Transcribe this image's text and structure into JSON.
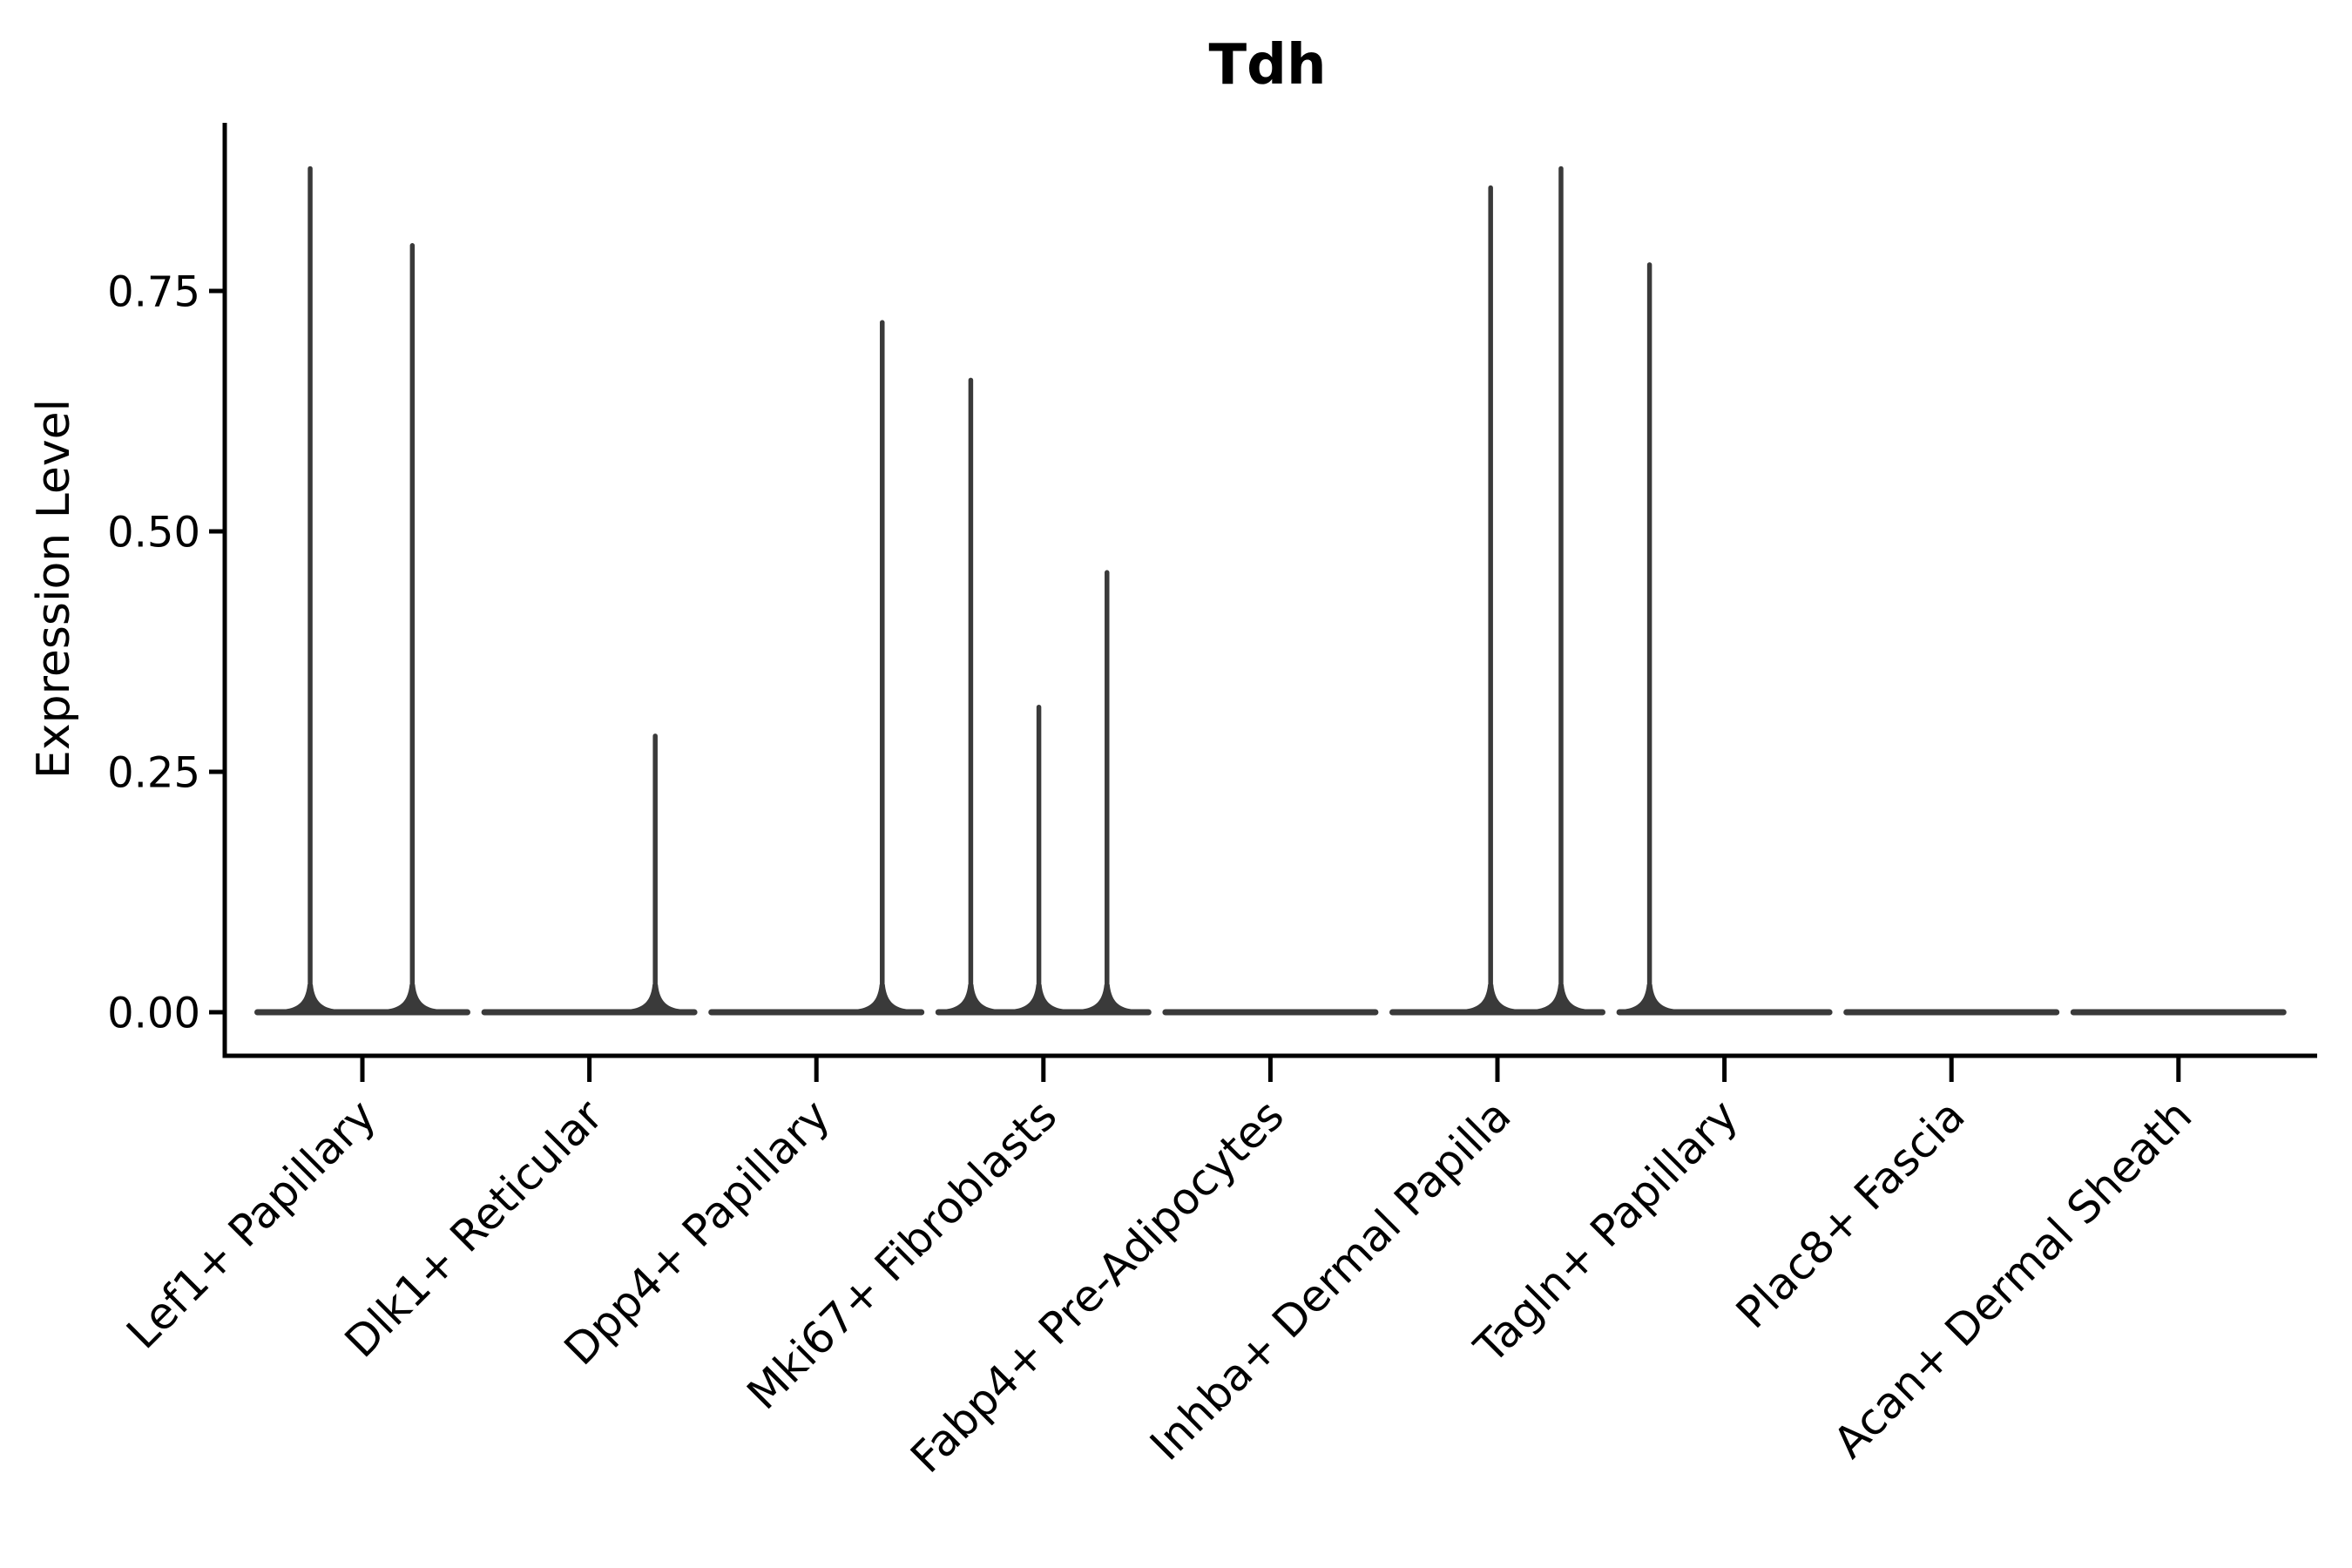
{
  "figure": {
    "background": "#ffffff"
  },
  "chart_data": {
    "type": "violin",
    "title": "Tdh",
    "ylabel": "Expression Level",
    "xlabel": "",
    "ylim": [
      0,
      0.93
    ],
    "yticks": [
      0.0,
      0.25,
      0.5,
      0.75
    ],
    "ytick_labels": [
      "0.00",
      "0.25",
      "0.50",
      "0.75"
    ],
    "grid": false,
    "legend": null,
    "axis_color": "#000000",
    "violin_color": "#3a3a3a",
    "x_label_rotation_deg": 45,
    "categories": [
      "Lef1+ Papillary",
      "Dlk1+ Reticular",
      "Dpp4+ Papillary",
      "Mki67+ Fibroblasts",
      "Fabp4+ Pre-Adipocytes",
      "Inhba+ Dermal Papilla",
      "Tagln+ Papillary",
      "Plac8+ Fascia",
      "Acan+ Dermal Sheath"
    ],
    "violins": [
      {
        "category": "Lef1+ Papillary",
        "baseline_value": 0,
        "spikes": [
          {
            "offset": -0.23,
            "value": 0.88
          },
          {
            "offset": 0.22,
            "value": 0.8
          }
        ]
      },
      {
        "category": "Dlk1+ Reticular",
        "baseline_value": 0,
        "spikes": [
          {
            "offset": 0.29,
            "value": 0.29
          }
        ]
      },
      {
        "category": "Dpp4+ Papillary",
        "baseline_value": 0,
        "spikes": [
          {
            "offset": 0.29,
            "value": 0.72
          }
        ]
      },
      {
        "category": "Mki67+ Fibroblasts",
        "baseline_value": 0,
        "spikes": [
          {
            "offset": -0.32,
            "value": 0.66
          },
          {
            "offset": -0.02,
            "value": 0.32
          },
          {
            "offset": 0.28,
            "value": 0.46
          }
        ]
      },
      {
        "category": "Fabp4+ Pre-Adipocytes",
        "baseline_value": 0,
        "spikes": []
      },
      {
        "category": "Inhba+ Dermal Papilla",
        "baseline_value": 0,
        "spikes": [
          {
            "offset": -0.03,
            "value": 0.86
          },
          {
            "offset": 0.28,
            "value": 0.88
          }
        ]
      },
      {
        "category": "Tagln+ Papillary",
        "baseline_value": 0,
        "spikes": [
          {
            "offset": -0.33,
            "value": 0.78
          }
        ]
      },
      {
        "category": "Plac8+ Fascia",
        "baseline_value": 0,
        "spikes": []
      },
      {
        "category": "Acan+ Dermal Sheath",
        "baseline_value": 0,
        "spikes": []
      }
    ]
  }
}
